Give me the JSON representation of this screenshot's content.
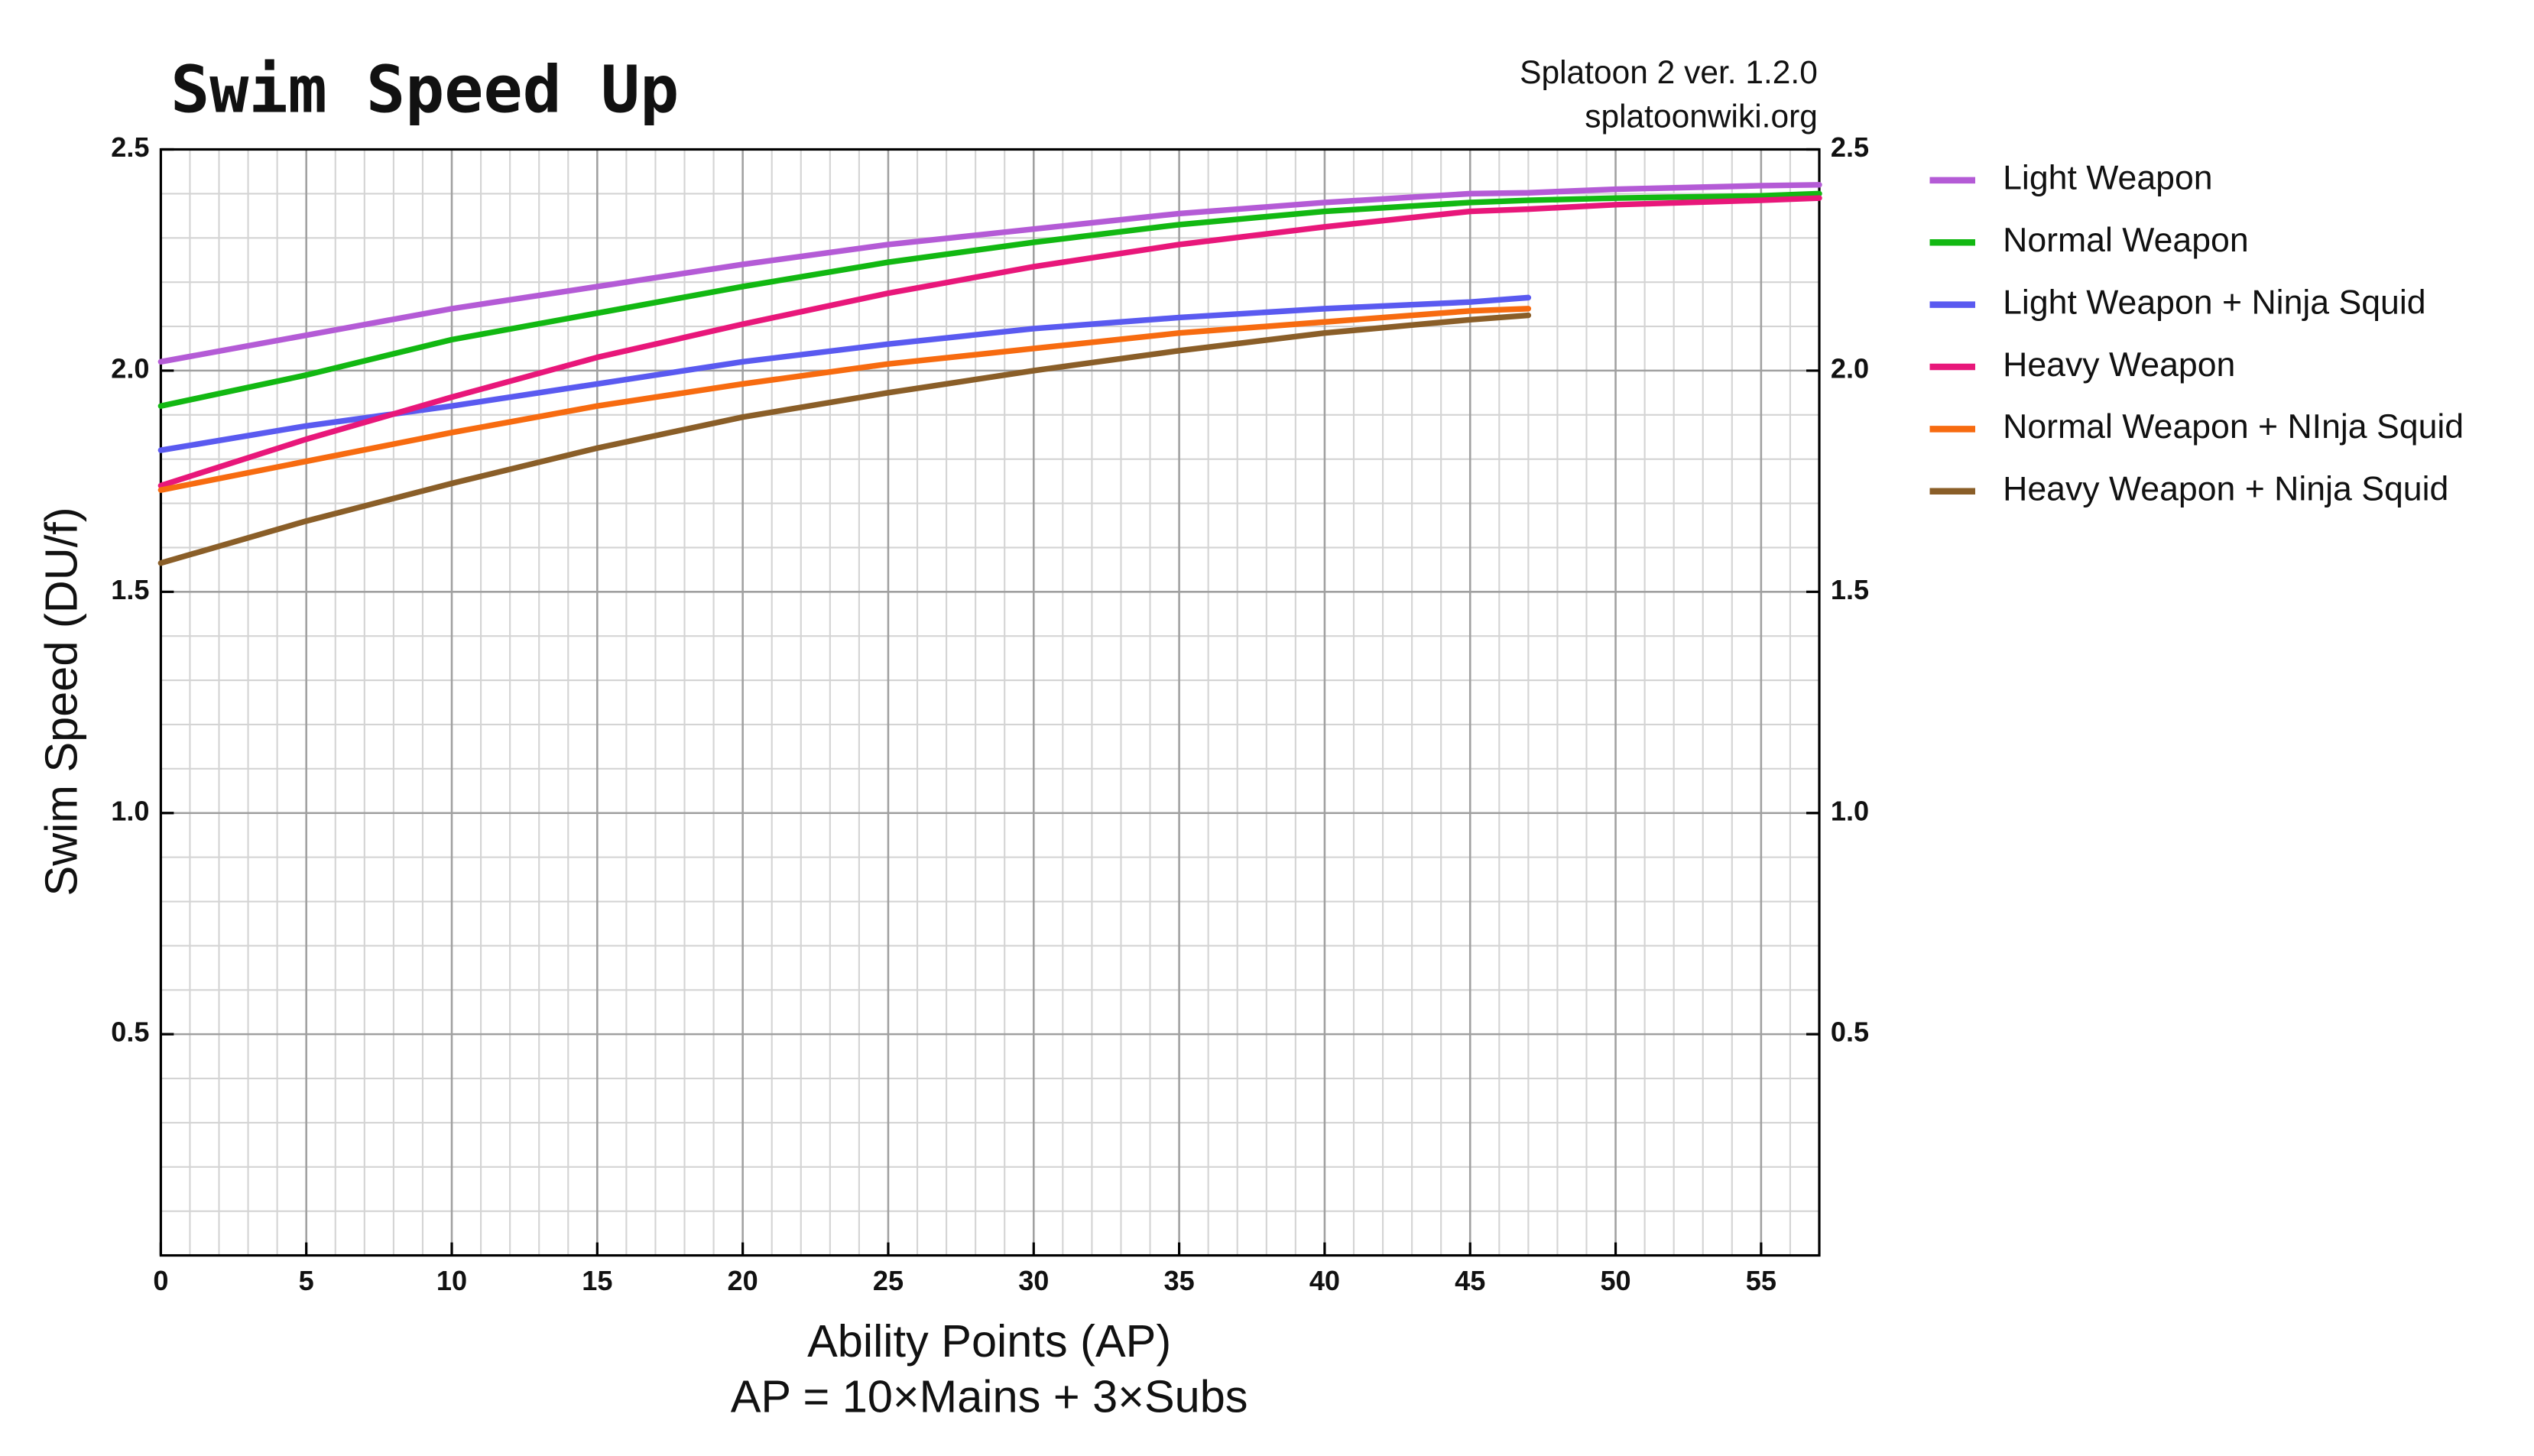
{
  "chart_data": {
    "type": "line",
    "title": "Swim Speed Up",
    "annotations": [
      "Splatoon 2 ver. 1.2.0",
      "splatoonwiki.org"
    ],
    "xlabel": [
      "Ability Points (AP)",
      "AP = 10×Mains + 3×Subs"
    ],
    "ylabel": "Swim Speed (DU/f)",
    "x": [
      0,
      5,
      10,
      15,
      20,
      25,
      30,
      35,
      40,
      45,
      47,
      50,
      55,
      57
    ],
    "series": [
      {
        "name": "Light Weapon",
        "color": "#b45bd6",
        "values": [
          2.02,
          2.08,
          2.14,
          2.19,
          2.24,
          2.285,
          2.32,
          2.355,
          2.38,
          2.4,
          2.402,
          2.41,
          2.418,
          2.42
        ]
      },
      {
        "name": "Normal Weapon",
        "color": "#12b812",
        "values": [
          1.92,
          1.99,
          2.07,
          2.13,
          2.19,
          2.245,
          2.29,
          2.33,
          2.36,
          2.38,
          2.385,
          2.39,
          2.395,
          2.4
        ]
      },
      {
        "name": "Light Weapon + Ninja Squid",
        "color": "#5a5af0",
        "values": [
          1.82,
          1.875,
          1.92,
          1.97,
          2.02,
          2.06,
          2.095,
          2.12,
          2.14,
          2.155,
          2.165,
          null,
          null,
          null
        ]
      },
      {
        "name": "Heavy Weapon",
        "color": "#e8177a",
        "values": [
          1.74,
          1.845,
          1.94,
          2.03,
          2.105,
          2.175,
          2.235,
          2.285,
          2.325,
          2.36,
          2.365,
          2.375,
          2.385,
          2.39
        ]
      },
      {
        "name": "Normal Weapon + NInja Squid",
        "color": "#f76b10",
        "values": [
          1.73,
          1.795,
          1.86,
          1.92,
          1.97,
          2.015,
          2.05,
          2.085,
          2.11,
          2.135,
          2.14,
          null,
          null,
          null
        ]
      },
      {
        "name": "Heavy Weapon + Ninja Squid",
        "color": "#8a5e28",
        "values": [
          1.565,
          1.66,
          1.745,
          1.825,
          1.895,
          1.95,
          2.0,
          2.045,
          2.085,
          2.115,
          2.125,
          null,
          null,
          null
        ]
      }
    ],
    "xlim": [
      0,
      57
    ],
    "ylim": [
      0,
      2.5
    ],
    "xticks": [
      0,
      5,
      10,
      15,
      20,
      25,
      30,
      35,
      40,
      45,
      50,
      55
    ],
    "yticks": [
      0.5,
      {
        "value": 1,
        "label": "1.0"
      },
      1.5,
      {
        "value": 2,
        "label": "2.0"
      },
      2.5
    ],
    "minor_xticks": [
      1,
      2,
      3,
      4,
      6,
      7,
      8,
      9,
      11,
      12,
      13,
      14,
      16,
      17,
      18,
      19,
      21,
      22,
      23,
      24,
      26,
      27,
      28,
      29,
      31,
      32,
      33,
      34,
      36,
      37,
      38,
      39,
      41,
      42,
      43,
      44,
      46,
      47,
      48,
      49,
      51,
      52,
      53,
      54,
      56
    ],
    "minor_yticks": [
      0.1,
      0.2,
      0.3,
      0.4,
      0.6,
      0.7,
      0.8,
      0.9,
      1.1,
      1.2,
      1.3,
      1.4,
      1.6,
      1.7,
      1.8,
      1.9,
      2.1,
      2.2,
      2.3,
      2.4
    ],
    "grid": true,
    "legend": "right"
  }
}
